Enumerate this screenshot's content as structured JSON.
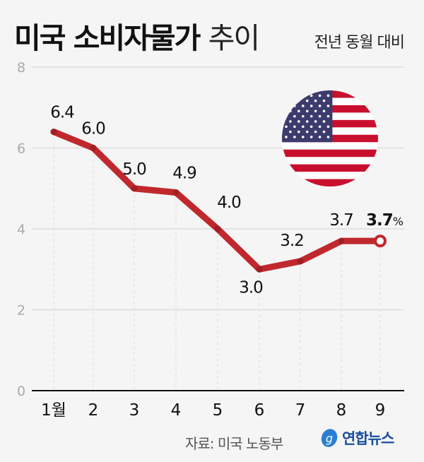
{
  "header": {
    "title_bold": "미국 소비자물가",
    "title_light": "추이",
    "unit_note": "전년 동월 대비"
  },
  "footer": {
    "source": "자료: 미국 노동부",
    "logo_text": "연합뉴스"
  },
  "colors": {
    "line": "#c0282d",
    "marker_last": "#c0282d",
    "grid": "#dddddd",
    "axis": "#111111"
  },
  "icons": {
    "flag": "us-flag-icon",
    "logo": "yonhap-logo-icon"
  },
  "chart_data": {
    "type": "line",
    "categories": [
      "1월",
      "2",
      "3",
      "4",
      "5",
      "6",
      "7",
      "8",
      "9"
    ],
    "values": [
      6.4,
      6.0,
      5.0,
      4.9,
      4.0,
      3.0,
      3.2,
      3.7,
      3.7
    ],
    "data_labels": [
      "6.4",
      "6.0",
      "5.0",
      "4.9",
      "4.0",
      "3.0",
      "3.2",
      "3.7",
      "3.7"
    ],
    "last_label_unit": "%",
    "ylim": [
      0,
      8
    ],
    "yticks": [
      "0",
      "2",
      "4",
      "6",
      "8"
    ],
    "grid": true,
    "xlabel": "",
    "ylabel": ""
  }
}
